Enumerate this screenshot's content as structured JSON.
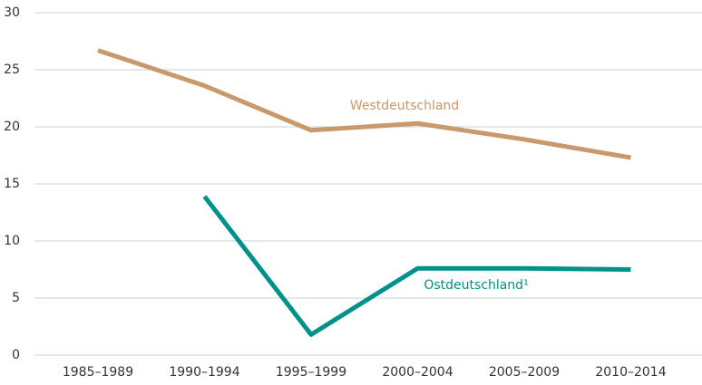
{
  "chart_data": {
    "type": "line",
    "categories": [
      "1985–1989",
      "1990–1994",
      "1995–1999",
      "2000–2004",
      "2005–2009",
      "2010–2014"
    ],
    "series": [
      {
        "name": "Westdeutschland",
        "color": "#c8996a",
        "values": [
          26.7,
          23.6,
          19.7,
          20.3,
          18.9,
          17.3
        ]
      },
      {
        "name": "Ostdeutschland¹",
        "color": "#00928a",
        "values": [
          null,
          13.9,
          1.8,
          7.6,
          7.6,
          7.5
        ]
      }
    ],
    "ylim": [
      0,
      30
    ],
    "yticks": [
      0,
      5,
      10,
      15,
      20,
      25,
      30
    ],
    "grid": true
  }
}
